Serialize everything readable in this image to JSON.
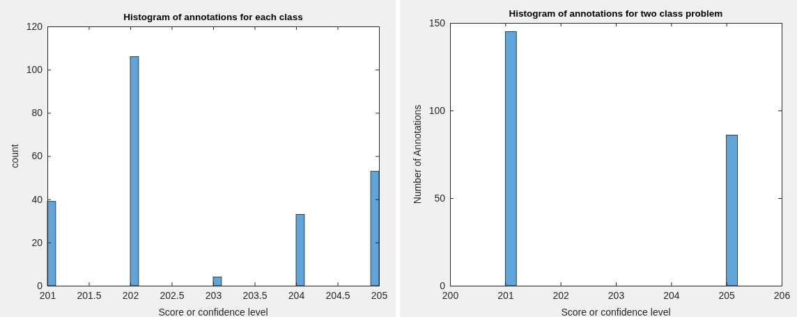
{
  "chart_data": [
    {
      "type": "histogram",
      "title": "Histogram of annotations for each class",
      "xlabel": "Score or confidence level",
      "ylabel": "count",
      "color": "#5fa5d9",
      "bins": [
        201,
        201.1,
        201.2,
        201.3,
        201.4,
        201.5,
        201.6,
        201.7,
        201.8,
        201.9,
        202,
        202.1,
        202.2,
        202.3,
        202.4,
        202.5,
        202.6,
        202.7,
        202.8,
        202.9,
        203,
        203.1,
        203.2,
        203.3,
        203.4,
        203.5,
        203.6,
        203.7,
        203.8,
        203.9,
        204,
        204.1,
        204.2,
        204.3,
        204.4,
        204.5,
        204.6,
        204.7,
        204.8,
        204.9,
        205
      ],
      "values": [
        39,
        0,
        0,
        0,
        0,
        0,
        0,
        0,
        0,
        0,
        106,
        0,
        0,
        0,
        0,
        0,
        0,
        0,
        0,
        0,
        4,
        0,
        0,
        0,
        0,
        0,
        0,
        0,
        0,
        0,
        33,
        0,
        0,
        0,
        0,
        0,
        0,
        0,
        0,
        53
      ],
      "xlim": [
        201,
        205
      ],
      "xticks": [
        201,
        201.5,
        202,
        202.5,
        203,
        203.5,
        204,
        204.5,
        205
      ],
      "ylim": [
        0,
        120
      ],
      "yticks": [
        0,
        20,
        40,
        60,
        80,
        100,
        120
      ]
    },
    {
      "type": "histogram",
      "title": "Histogram of annotations for two class problem",
      "xlabel": "Score or confidence level",
      "ylabel": "Number of Annotations",
      "color": "#5fa5d9",
      "bins": [
        201,
        201.2,
        201.4,
        201.6,
        201.8,
        202,
        202.2,
        202.4,
        202.6,
        202.8,
        203,
        203.2,
        203.4,
        203.6,
        203.8,
        204,
        204.2,
        204.4,
        204.6,
        204.8,
        205,
        205.2
      ],
      "values": [
        145,
        0,
        0,
        0,
        0,
        0,
        0,
        0,
        0,
        0,
        0,
        0,
        0,
        0,
        0,
        0,
        0,
        0,
        0,
        0,
        86
      ],
      "xlim": [
        200,
        206
      ],
      "xticks": [
        200,
        201,
        202,
        203,
        204,
        205,
        206
      ],
      "ylim": [
        0,
        150
      ],
      "yticks": [
        0,
        50,
        100,
        150
      ]
    }
  ]
}
